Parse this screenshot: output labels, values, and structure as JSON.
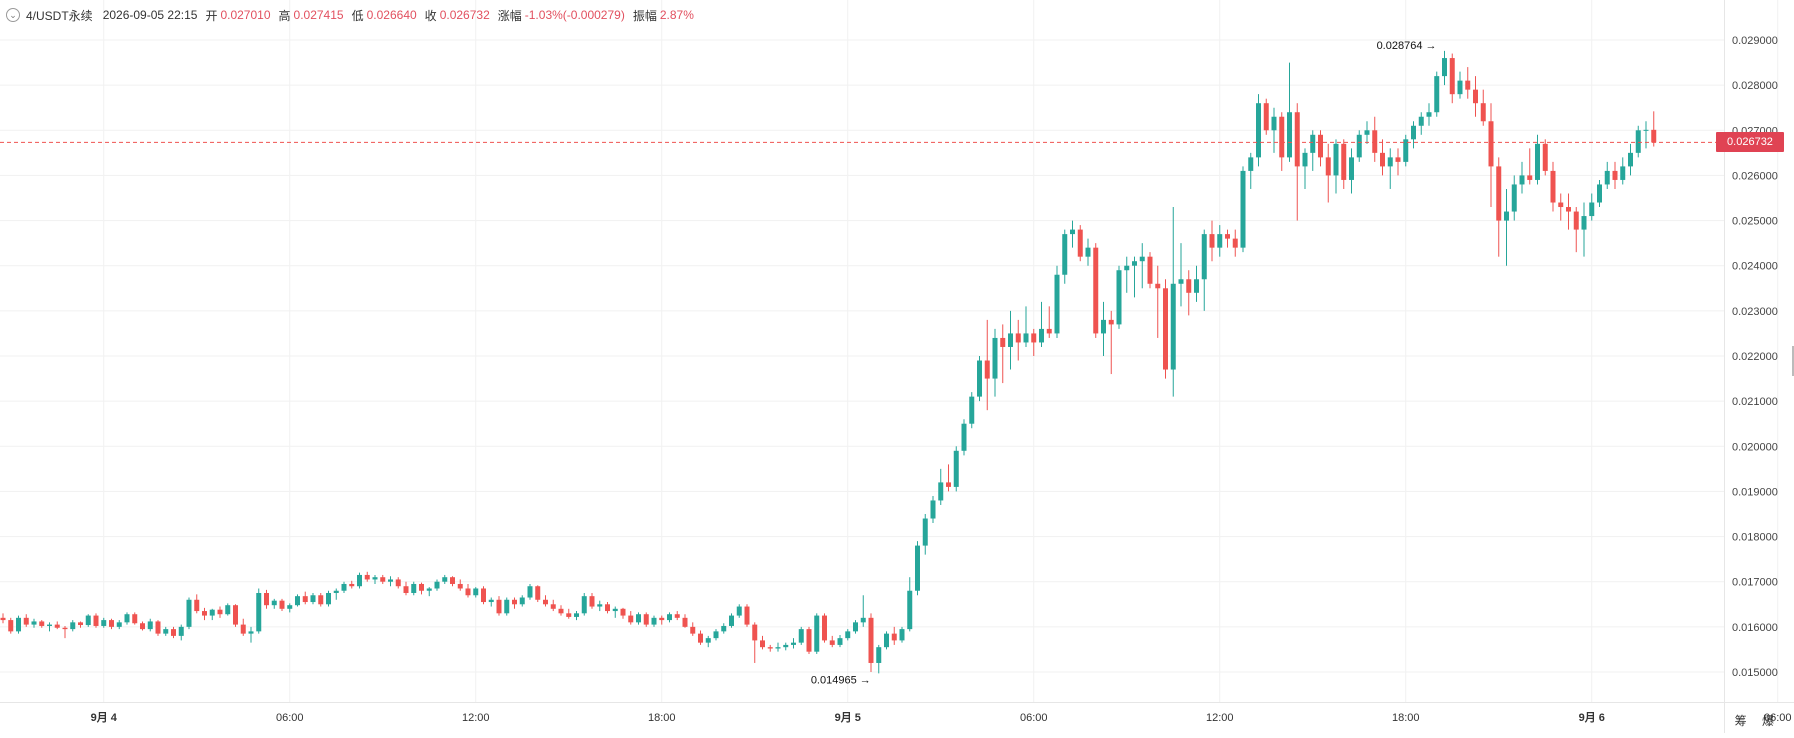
{
  "header": {
    "symbol": "4/USDT永续",
    "datetime": "2026-09-05 22:15",
    "open_label": "开",
    "open": "0.027010",
    "high_label": "高",
    "high": "0.027415",
    "low_label": "低",
    "low": "0.026640",
    "close_label": "收",
    "close": "0.026732",
    "change_label": "涨幅",
    "change": "-1.03%(-0.000279)",
    "amplitude_label": "振幅",
    "amplitude": "2.87%"
  },
  "corner_text": "筹 爆",
  "colors": {
    "up": "#26a69a",
    "down": "#ef5350",
    "last_price_tag": "#e04353"
  },
  "chart_data": {
    "type": "candlestick",
    "candle_interval_minutes": 15,
    "x_start": "2026-09-03 20:45",
    "y_ticks": [
      "0.015000",
      "0.016000",
      "0.017000",
      "0.018000",
      "0.019000",
      "0.020000",
      "0.021000",
      "0.022000",
      "0.023000",
      "0.024000",
      "0.025000",
      "0.026000",
      "0.027000",
      "0.028000",
      "0.029000"
    ],
    "x_ticks": [
      {
        "label": "9月 4",
        "time": "2026-09-04 00:00"
      },
      {
        "label": "06:00",
        "time": "2026-09-04 06:00"
      },
      {
        "label": "12:00",
        "time": "2026-09-04 12:00"
      },
      {
        "label": "18:00",
        "time": "2026-09-04 18:00"
      },
      {
        "label": "9月 5",
        "time": "2026-09-05 00:00"
      },
      {
        "label": "06:00",
        "time": "2026-09-05 06:00"
      },
      {
        "label": "12:00",
        "time": "2026-09-05 12:00"
      },
      {
        "label": "18:00",
        "time": "2026-09-05 18:00"
      },
      {
        "label": "9月 6",
        "time": "2026-09-06 00:00"
      },
      {
        "label": "06:00",
        "time": "2026-09-06 06:00"
      }
    ],
    "last_price": "0.026732",
    "max_label": "0.028764",
    "min_label": "0.014965",
    "grid": true,
    "candles": [
      [
        0.0162,
        0.0163,
        0.01608,
        0.01615
      ],
      [
        0.01615,
        0.0162,
        0.01585,
        0.0159
      ],
      [
        0.0159,
        0.01625,
        0.01585,
        0.0162
      ],
      [
        0.0162,
        0.01628,
        0.016,
        0.01605
      ],
      [
        0.01605,
        0.01618,
        0.01598,
        0.01612
      ],
      [
        0.01612,
        0.01615,
        0.01598,
        0.01602
      ],
      [
        0.01602,
        0.0161,
        0.0159,
        0.01605
      ],
      [
        0.01605,
        0.01612,
        0.01595,
        0.01598
      ],
      [
        0.01598,
        0.01602,
        0.01575,
        0.01595
      ],
      [
        0.01595,
        0.01615,
        0.0159,
        0.0161
      ],
      [
        0.0161,
        0.01612,
        0.01598,
        0.01604
      ],
      [
        0.01604,
        0.01628,
        0.016,
        0.01625
      ],
      [
        0.01625,
        0.0163,
        0.01598,
        0.01602
      ],
      [
        0.01602,
        0.0162,
        0.01598,
        0.01615
      ],
      [
        0.01615,
        0.01618,
        0.01595,
        0.016
      ],
      [
        0.016,
        0.01615,
        0.01595,
        0.0161
      ],
      [
        0.0161,
        0.01632,
        0.01605,
        0.01628
      ],
      [
        0.01628,
        0.01632,
        0.01605,
        0.01608
      ],
      [
        0.01608,
        0.01612,
        0.01592,
        0.01595
      ],
      [
        0.01595,
        0.01618,
        0.0159,
        0.01612
      ],
      [
        0.01612,
        0.01615,
        0.0158,
        0.01585
      ],
      [
        0.01585,
        0.016,
        0.0158,
        0.01595
      ],
      [
        0.01595,
        0.016,
        0.01575,
        0.0158
      ],
      [
        0.0158,
        0.01605,
        0.0157,
        0.016
      ],
      [
        0.016,
        0.01665,
        0.01595,
        0.0166
      ],
      [
        0.0166,
        0.01672,
        0.0163,
        0.01635
      ],
      [
        0.01635,
        0.01642,
        0.01615,
        0.01625
      ],
      [
        0.01625,
        0.0164,
        0.01615,
        0.01638
      ],
      [
        0.01638,
        0.01645,
        0.0162,
        0.01628
      ],
      [
        0.01628,
        0.01652,
        0.01625,
        0.01648
      ],
      [
        0.01648,
        0.0165,
        0.016,
        0.01605
      ],
      [
        0.01605,
        0.01618,
        0.0158,
        0.01585
      ],
      [
        0.01585,
        0.016,
        0.01565,
        0.0159
      ],
      [
        0.0159,
        0.01685,
        0.01585,
        0.01675
      ],
      [
        0.01675,
        0.01682,
        0.0164,
        0.01648
      ],
      [
        0.01648,
        0.01662,
        0.0164,
        0.01658
      ],
      [
        0.01658,
        0.01662,
        0.01635,
        0.0164
      ],
      [
        0.0164,
        0.01652,
        0.01632,
        0.01648
      ],
      [
        0.01648,
        0.01672,
        0.01645,
        0.01668
      ],
      [
        0.01668,
        0.01678,
        0.0165,
        0.01655
      ],
      [
        0.01655,
        0.01675,
        0.0165,
        0.0167
      ],
      [
        0.0167,
        0.01675,
        0.01645,
        0.0165
      ],
      [
        0.0165,
        0.0168,
        0.01645,
        0.01675
      ],
      [
        0.01675,
        0.01685,
        0.0166,
        0.0168
      ],
      [
        0.0168,
        0.017,
        0.01675,
        0.01695
      ],
      [
        0.01695,
        0.01702,
        0.01685,
        0.0169
      ],
      [
        0.0169,
        0.0172,
        0.01685,
        0.01715
      ],
      [
        0.01715,
        0.01722,
        0.017,
        0.01705
      ],
      [
        0.01705,
        0.01715,
        0.01695,
        0.0171
      ],
      [
        0.0171,
        0.01715,
        0.01695,
        0.017
      ],
      [
        0.017,
        0.01712,
        0.0169,
        0.01705
      ],
      [
        0.01705,
        0.0171,
        0.01685,
        0.0169
      ],
      [
        0.0169,
        0.017,
        0.0167,
        0.01675
      ],
      [
        0.01675,
        0.017,
        0.0167,
        0.01695
      ],
      [
        0.01695,
        0.01698,
        0.01672,
        0.0168
      ],
      [
        0.0168,
        0.01688,
        0.01668,
        0.01685
      ],
      [
        0.01685,
        0.01705,
        0.0168,
        0.017
      ],
      [
        0.017,
        0.01715,
        0.01695,
        0.0171
      ],
      [
        0.0171,
        0.01712,
        0.0169,
        0.01695
      ],
      [
        0.01695,
        0.01705,
        0.0168,
        0.01685
      ],
      [
        0.01685,
        0.01695,
        0.01665,
        0.0167
      ],
      [
        0.0167,
        0.01688,
        0.01665,
        0.01685
      ],
      [
        0.01685,
        0.0169,
        0.0165,
        0.01655
      ],
      [
        0.01655,
        0.01665,
        0.01645,
        0.0166
      ],
      [
        0.0166,
        0.01668,
        0.01625,
        0.0163
      ],
      [
        0.0163,
        0.01665,
        0.01625,
        0.0166
      ],
      [
        0.0166,
        0.01665,
        0.0164,
        0.0165
      ],
      [
        0.0165,
        0.0167,
        0.01645,
        0.01665
      ],
      [
        0.01665,
        0.01695,
        0.0166,
        0.0169
      ],
      [
        0.0169,
        0.01692,
        0.01655,
        0.0166
      ],
      [
        0.0166,
        0.0167,
        0.01645,
        0.0165
      ],
      [
        0.0165,
        0.0166,
        0.01635,
        0.0164
      ],
      [
        0.0164,
        0.01648,
        0.01625,
        0.0163
      ],
      [
        0.0163,
        0.0164,
        0.01618,
        0.01622
      ],
      [
        0.01622,
        0.01635,
        0.01615,
        0.0163
      ],
      [
        0.0163,
        0.01675,
        0.01625,
        0.01668
      ],
      [
        0.01668,
        0.01675,
        0.0164,
        0.01645
      ],
      [
        0.01645,
        0.01658,
        0.01635,
        0.0165
      ],
      [
        0.0165,
        0.01655,
        0.0163,
        0.01635
      ],
      [
        0.01635,
        0.01645,
        0.0162,
        0.0164
      ],
      [
        0.0164,
        0.01642,
        0.01618,
        0.01625
      ],
      [
        0.01625,
        0.01635,
        0.01605,
        0.0161
      ],
      [
        0.0161,
        0.01632,
        0.01605,
        0.01628
      ],
      [
        0.01628,
        0.01632,
        0.016,
        0.01605
      ],
      [
        0.01605,
        0.01625,
        0.016,
        0.0162
      ],
      [
        0.0162,
        0.01625,
        0.01605,
        0.01615
      ],
      [
        0.01615,
        0.01632,
        0.0161,
        0.01628
      ],
      [
        0.01628,
        0.01635,
        0.01615,
        0.0162
      ],
      [
        0.0162,
        0.01628,
        0.01598,
        0.016
      ],
      [
        0.016,
        0.0161,
        0.0158,
        0.01585
      ],
      [
        0.01585,
        0.01592,
        0.0156,
        0.01565
      ],
      [
        0.01565,
        0.0158,
        0.01555,
        0.01575
      ],
      [
        0.01575,
        0.01595,
        0.0157,
        0.0159
      ],
      [
        0.0159,
        0.01608,
        0.01585,
        0.01602
      ],
      [
        0.01602,
        0.0163,
        0.01598,
        0.01625
      ],
      [
        0.01625,
        0.0165,
        0.0162,
        0.01645
      ],
      [
        0.01645,
        0.0165,
        0.016,
        0.01605
      ],
      [
        0.01605,
        0.0161,
        0.0152,
        0.0157
      ],
      [
        0.0157,
        0.0158,
        0.0155,
        0.01555
      ],
      [
        0.01555,
        0.0156,
        0.01545,
        0.01552
      ],
      [
        0.01552,
        0.01565,
        0.01545,
        0.01555
      ],
      [
        0.01555,
        0.01565,
        0.01548,
        0.0156
      ],
      [
        0.0156,
        0.01575,
        0.01552,
        0.01565
      ],
      [
        0.01565,
        0.016,
        0.0156,
        0.01595
      ],
      [
        0.01595,
        0.016,
        0.0154,
        0.01545
      ],
      [
        0.01545,
        0.0163,
        0.0154,
        0.01625
      ],
      [
        0.01625,
        0.0163,
        0.01565,
        0.0157
      ],
      [
        0.0157,
        0.0158,
        0.01555,
        0.0156
      ],
      [
        0.0156,
        0.01582,
        0.01555,
        0.01575
      ],
      [
        0.01575,
        0.01595,
        0.0157,
        0.0159
      ],
      [
        0.0159,
        0.01615,
        0.01585,
        0.0161
      ],
      [
        0.0161,
        0.0167,
        0.016,
        0.0162
      ],
      [
        0.0162,
        0.0163,
        0.015,
        0.0152
      ],
      [
        0.0152,
        0.0156,
        0.01497,
        0.01555
      ],
      [
        0.01555,
        0.0159,
        0.0155,
        0.01585
      ],
      [
        0.01585,
        0.016,
        0.0156,
        0.0157
      ],
      [
        0.0157,
        0.016,
        0.01565,
        0.01595
      ],
      [
        0.01595,
        0.0171,
        0.0159,
        0.0168
      ],
      [
        0.0168,
        0.0179,
        0.0167,
        0.0178
      ],
      [
        0.0178,
        0.0185,
        0.0176,
        0.0184
      ],
      [
        0.0184,
        0.0189,
        0.0183,
        0.0188
      ],
      [
        0.0188,
        0.0195,
        0.0187,
        0.0192
      ],
      [
        0.0192,
        0.0196,
        0.019,
        0.0191
      ],
      [
        0.0191,
        0.02,
        0.019,
        0.0199
      ],
      [
        0.0199,
        0.0206,
        0.0198,
        0.0205
      ],
      [
        0.0205,
        0.0212,
        0.0204,
        0.0211
      ],
      [
        0.0211,
        0.022,
        0.021,
        0.0219
      ],
      [
        0.0219,
        0.0228,
        0.0208,
        0.0215
      ],
      [
        0.0215,
        0.0226,
        0.0211,
        0.0224
      ],
      [
        0.0224,
        0.0227,
        0.0214,
        0.0222
      ],
      [
        0.0222,
        0.023,
        0.0217,
        0.0225
      ],
      [
        0.0225,
        0.0228,
        0.0219,
        0.0223
      ],
      [
        0.0223,
        0.0231,
        0.0222,
        0.0225
      ],
      [
        0.0225,
        0.0226,
        0.022,
        0.0223
      ],
      [
        0.0223,
        0.0232,
        0.0222,
        0.0226
      ],
      [
        0.0226,
        0.0231,
        0.0224,
        0.0225
      ],
      [
        0.0225,
        0.024,
        0.0224,
        0.0238
      ],
      [
        0.0238,
        0.0248,
        0.0236,
        0.0247
      ],
      [
        0.0247,
        0.025,
        0.0244,
        0.0248
      ],
      [
        0.0248,
        0.0249,
        0.0241,
        0.0242
      ],
      [
        0.0242,
        0.0246,
        0.024,
        0.0244
      ],
      [
        0.0244,
        0.0245,
        0.0224,
        0.0225
      ],
      [
        0.0225,
        0.0232,
        0.022,
        0.0228
      ],
      [
        0.0228,
        0.023,
        0.0216,
        0.0227
      ],
      [
        0.0227,
        0.024,
        0.0226,
        0.0239
      ],
      [
        0.0239,
        0.0242,
        0.0234,
        0.024
      ],
      [
        0.024,
        0.0242,
        0.0233,
        0.0241
      ],
      [
        0.0241,
        0.0245,
        0.0235,
        0.0242
      ],
      [
        0.0242,
        0.0243,
        0.0235,
        0.0236
      ],
      [
        0.0236,
        0.024,
        0.0224,
        0.0235
      ],
      [
        0.0235,
        0.0237,
        0.0215,
        0.0217
      ],
      [
        0.0217,
        0.0253,
        0.0211,
        0.0236
      ],
      [
        0.0236,
        0.0245,
        0.0231,
        0.0237
      ],
      [
        0.0237,
        0.0239,
        0.0229,
        0.0234
      ],
      [
        0.0234,
        0.024,
        0.0232,
        0.0237
      ],
      [
        0.0237,
        0.0248,
        0.023,
        0.0247
      ],
      [
        0.0247,
        0.025,
        0.0241,
        0.0244
      ],
      [
        0.0244,
        0.0249,
        0.0242,
        0.0247
      ],
      [
        0.0247,
        0.0248,
        0.0244,
        0.0246
      ],
      [
        0.0246,
        0.0248,
        0.0242,
        0.0244
      ],
      [
        0.0244,
        0.0262,
        0.0243,
        0.0261
      ],
      [
        0.0261,
        0.0265,
        0.0257,
        0.0264
      ],
      [
        0.0264,
        0.0278,
        0.0262,
        0.0276
      ],
      [
        0.0276,
        0.0277,
        0.0269,
        0.027
      ],
      [
        0.027,
        0.0275,
        0.0265,
        0.0273
      ],
      [
        0.0273,
        0.0274,
        0.0261,
        0.0264
      ],
      [
        0.0264,
        0.0285,
        0.0263,
        0.0274
      ],
      [
        0.0274,
        0.0276,
        0.025,
        0.0262
      ],
      [
        0.0262,
        0.0266,
        0.0257,
        0.0265
      ],
      [
        0.0265,
        0.027,
        0.0261,
        0.0269
      ],
      [
        0.0269,
        0.027,
        0.0262,
        0.0264
      ],
      [
        0.0264,
        0.0267,
        0.0254,
        0.026
      ],
      [
        0.026,
        0.0268,
        0.0256,
        0.0267
      ],
      [
        0.0267,
        0.0268,
        0.0257,
        0.0259
      ],
      [
        0.0259,
        0.0266,
        0.0256,
        0.0264
      ],
      [
        0.0264,
        0.027,
        0.0263,
        0.0269
      ],
      [
        0.0269,
        0.0272,
        0.0267,
        0.027
      ],
      [
        0.027,
        0.0273,
        0.0263,
        0.0265
      ],
      [
        0.0265,
        0.0268,
        0.026,
        0.0262
      ],
      [
        0.0262,
        0.0266,
        0.0257,
        0.0264
      ],
      [
        0.0264,
        0.0266,
        0.026,
        0.0263
      ],
      [
        0.0263,
        0.0269,
        0.0262,
        0.0268
      ],
      [
        0.0268,
        0.0272,
        0.0266,
        0.0271
      ],
      [
        0.0271,
        0.0274,
        0.0269,
        0.0273
      ],
      [
        0.0273,
        0.0276,
        0.0271,
        0.0274
      ],
      [
        0.0274,
        0.0283,
        0.0273,
        0.0282
      ],
      [
        0.0282,
        0.02876,
        0.028,
        0.0286
      ],
      [
        0.0286,
        0.0287,
        0.0276,
        0.0278
      ],
      [
        0.0278,
        0.0283,
        0.0277,
        0.0281
      ],
      [
        0.0281,
        0.0284,
        0.0277,
        0.0279
      ],
      [
        0.0279,
        0.0282,
        0.0273,
        0.0276
      ],
      [
        0.0276,
        0.0279,
        0.0271,
        0.0272
      ],
      [
        0.0272,
        0.0276,
        0.0253,
        0.0262
      ],
      [
        0.0262,
        0.0264,
        0.0242,
        0.025
      ],
      [
        0.025,
        0.0257,
        0.024,
        0.0252
      ],
      [
        0.0252,
        0.026,
        0.025,
        0.0258
      ],
      [
        0.0258,
        0.0263,
        0.0256,
        0.026
      ],
      [
        0.026,
        0.0266,
        0.0258,
        0.0259
      ],
      [
        0.0259,
        0.0269,
        0.0258,
        0.0267
      ],
      [
        0.0267,
        0.0268,
        0.026,
        0.0261
      ],
      [
        0.0261,
        0.0263,
        0.0252,
        0.0254
      ],
      [
        0.0254,
        0.0256,
        0.025,
        0.0253
      ],
      [
        0.0253,
        0.0256,
        0.0248,
        0.0252
      ],
      [
        0.0252,
        0.0253,
        0.0243,
        0.0248
      ],
      [
        0.0248,
        0.0254,
        0.0242,
        0.0251
      ],
      [
        0.0251,
        0.0256,
        0.025,
        0.0254
      ],
      [
        0.0254,
        0.0259,
        0.0253,
        0.0258
      ],
      [
        0.0258,
        0.0263,
        0.0257,
        0.0261
      ],
      [
        0.0261,
        0.0263,
        0.0257,
        0.0259
      ],
      [
        0.0259,
        0.0264,
        0.0258,
        0.0262
      ],
      [
        0.0262,
        0.0267,
        0.026,
        0.0265
      ],
      [
        0.0265,
        0.0271,
        0.0264,
        0.027
      ],
      [
        0.027,
        0.0272,
        0.0266,
        0.02701
      ],
      [
        0.02701,
        0.02742,
        0.02664,
        0.02673
      ]
    ]
  }
}
